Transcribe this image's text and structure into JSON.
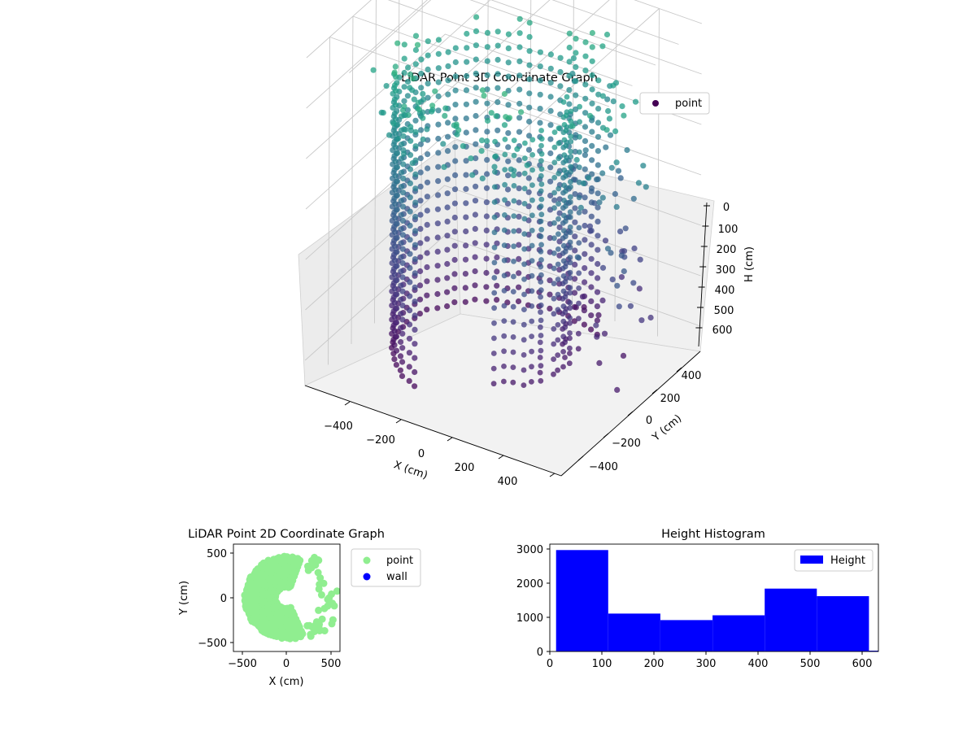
{
  "chart_data": [
    {
      "type": "scatter",
      "title": "LiDAR Point 3D Coordinate Graph",
      "xlabel": "X (cm)",
      "ylabel": "Y (cm)",
      "zlabel": "H (cm)",
      "xlim": [
        -600,
        600
      ],
      "ylim": [
        -600,
        600
      ],
      "zlim": [
        0,
        650
      ],
      "z_inverted": true,
      "x_ticks": [
        "−400",
        "−200",
        "0",
        "200",
        "400"
      ],
      "y_ticks": [
        "−400",
        "−200",
        "0",
        "200",
        "400"
      ],
      "z_ticks": [
        "0",
        "100",
        "200",
        "300",
        "400",
        "500",
        "600"
      ],
      "grid": true,
      "legend": {
        "position": "top-right",
        "entries": [
          "point"
        ]
      },
      "colormap": "viridis",
      "series": [
        {
          "name": "point",
          "shape": "rings around origin; outer surface radius ~450 on the back/left arc, points spread up to ~550 toward the +X/+Y side",
          "height_range": [
            0,
            620
          ]
        }
      ]
    },
    {
      "type": "scatter",
      "title": "LiDAR Point 2D Coordinate Graph",
      "xlabel": "X (cm)",
      "ylabel": "Y (cm)",
      "xlim": [
        -600,
        600
      ],
      "ylim": [
        -600,
        600
      ],
      "x_ticks": [
        "−500",
        "0",
        "500"
      ],
      "y_ticks": [
        "−500",
        "0",
        "500"
      ],
      "legend": {
        "position": "outside-right",
        "entries": [
          "point",
          "wall"
        ]
      },
      "series": [
        {
          "name": "point",
          "color": "#90ee90"
        },
        {
          "name": "wall",
          "color": "#0000ff"
        }
      ]
    },
    {
      "type": "bar",
      "title": "Height Histogram",
      "xlim": [
        0,
        630
      ],
      "ylim": [
        0,
        3100
      ],
      "x_ticks": [
        "0",
        "100",
        "200",
        "300",
        "400",
        "500",
        "600"
      ],
      "y_ticks": [
        "0",
        "1000",
        "2000",
        "3000"
      ],
      "legend": {
        "position": "top-right",
        "entries": [
          "Height"
        ]
      },
      "series": [
        {
          "name": "Height",
          "color": "#0000ff",
          "bins": [
            {
              "from": 12,
              "to": 112,
              "count": 2970
            },
            {
              "from": 112,
              "to": 212,
              "count": 1110
            },
            {
              "from": 212,
              "to": 312,
              "count": 920
            },
            {
              "from": 312,
              "to": 412,
              "count": 1060
            },
            {
              "from": 412,
              "to": 512,
              "count": 1840
            },
            {
              "from": 512,
              "to": 612,
              "count": 1620
            },
            {
              "from": 612,
              "to": 630,
              "count": 25
            }
          ]
        }
      ]
    }
  ]
}
